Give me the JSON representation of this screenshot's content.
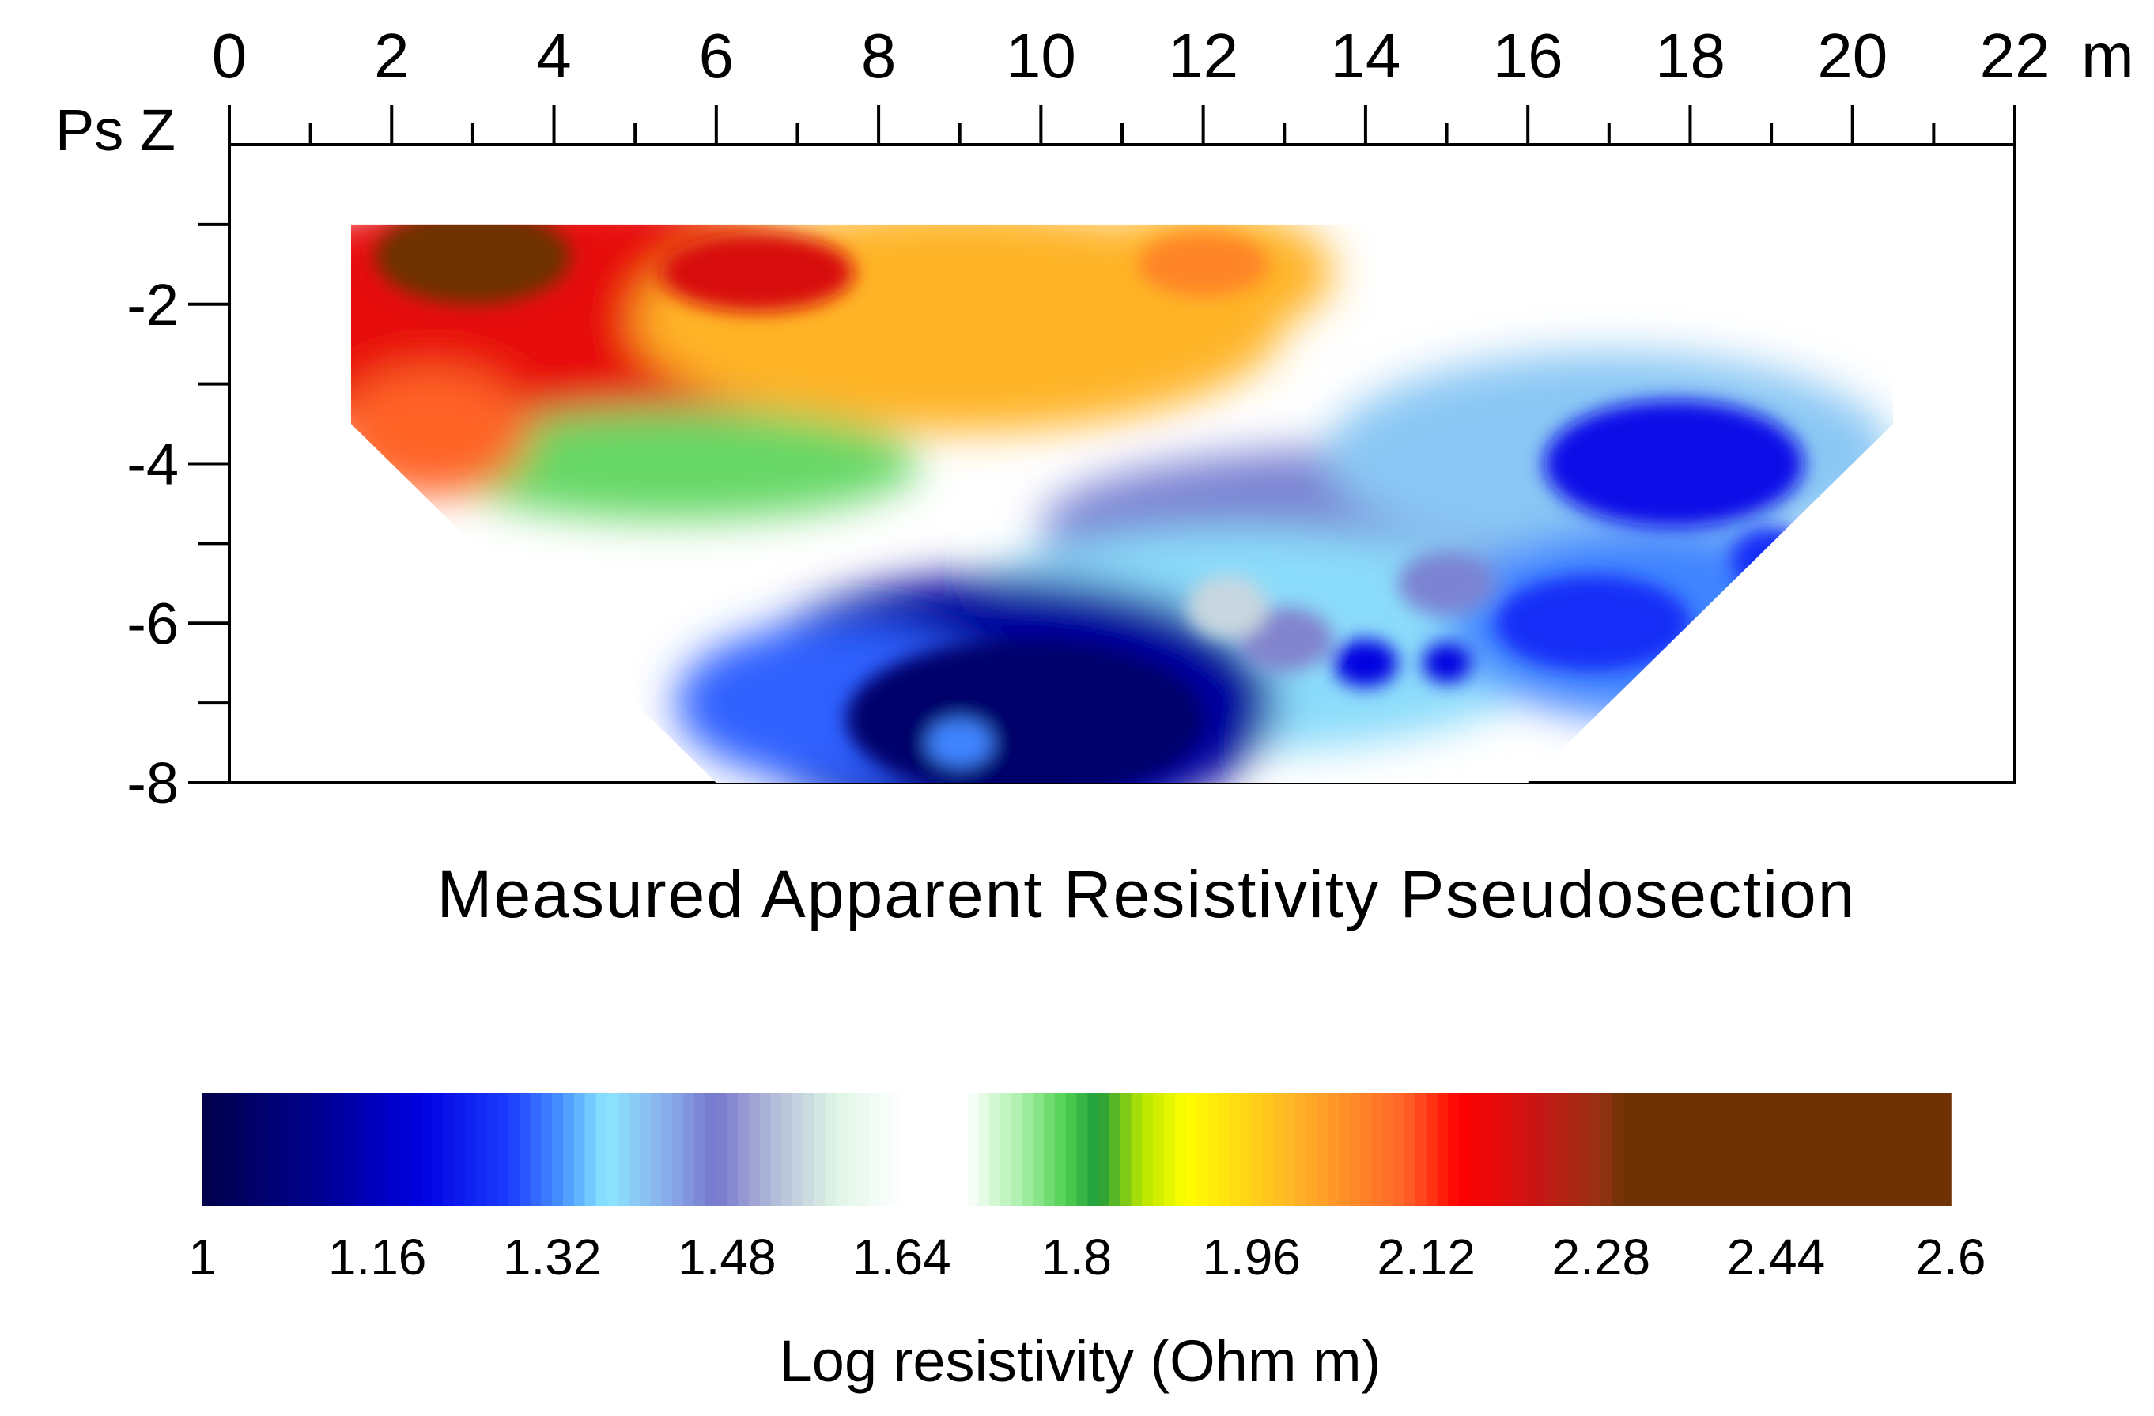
{
  "chart_data": {
    "type": "heatmap",
    "title": "Measured Apparent Resistivity Pseudosection",
    "x_axis": {
      "unit": "m",
      "range": [
        0,
        22
      ],
      "tick_labels": [
        "0",
        "2",
        "4",
        "6",
        "8",
        "10",
        "12",
        "14",
        "16",
        "18",
        "20",
        "22"
      ]
    },
    "y_axis": {
      "label": "Ps Z",
      "range": [
        -8,
        0
      ],
      "tick_labels": [
        "-2",
        "-4",
        "-6",
        "-8"
      ]
    },
    "data_extent": {
      "top_depth": -1,
      "bottom_depth": -8,
      "top_x": [
        1.5,
        20.5
      ],
      "bottom_x": [
        6,
        16
      ]
    },
    "grid": false,
    "colorbar": {
      "title": "Log resistivity (Ohm m)",
      "range": [
        1,
        2.6
      ],
      "tick_labels": [
        "1",
        "1.16",
        "1.32",
        "1.48",
        "1.64",
        "1.8",
        "1.96",
        "2.12",
        "2.28",
        "2.44",
        "2.6"
      ],
      "stops": [
        {
          "value": 1.0,
          "color": "#00004a"
        },
        {
          "value": 1.1,
          "color": "#00008c"
        },
        {
          "value": 1.2,
          "color": "#0000e0"
        },
        {
          "value": 1.28,
          "color": "#1c3cff"
        },
        {
          "value": 1.33,
          "color": "#4a96ff"
        },
        {
          "value": 1.37,
          "color": "#8ce6ff"
        },
        {
          "value": 1.43,
          "color": "#88a8e8"
        },
        {
          "value": 1.47,
          "color": "#7676cc"
        },
        {
          "value": 1.52,
          "color": "#b0b8d8"
        },
        {
          "value": 1.58,
          "color": "#dff5e6"
        },
        {
          "value": 1.64,
          "color": "#ffffff"
        },
        {
          "value": 1.7,
          "color": "#ffffff"
        },
        {
          "value": 1.75,
          "color": "#a8f0a8"
        },
        {
          "value": 1.79,
          "color": "#50d050"
        },
        {
          "value": 1.82,
          "color": "#1e9b3c"
        },
        {
          "value": 1.86,
          "color": "#b8e600"
        },
        {
          "value": 1.9,
          "color": "#ffff00"
        },
        {
          "value": 2.0,
          "color": "#ffb428"
        },
        {
          "value": 2.1,
          "color": "#ff6428"
        },
        {
          "value": 2.15,
          "color": "#ff0000"
        },
        {
          "value": 2.22,
          "color": "#c81414"
        },
        {
          "value": 2.28,
          "color": "#963214"
        },
        {
          "value": 2.3,
          "color": "#6e3204"
        },
        {
          "value": 2.6,
          "color": "#6e3204"
        }
      ]
    }
  }
}
